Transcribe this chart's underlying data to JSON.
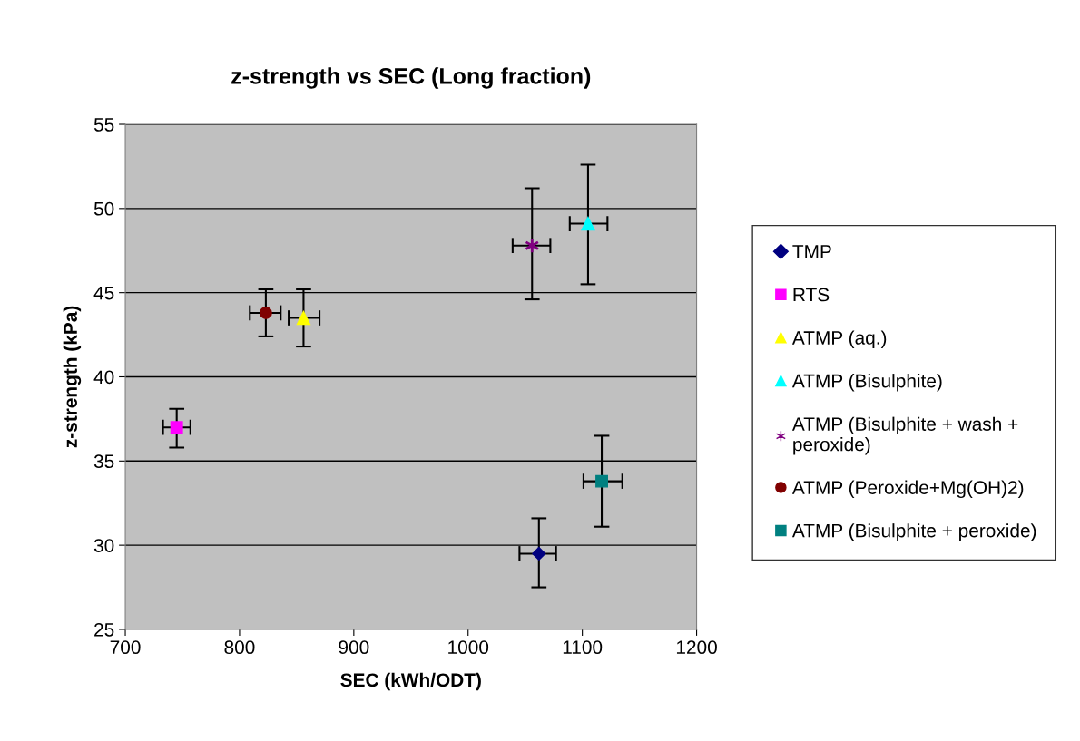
{
  "chart_data": {
    "type": "scatter",
    "title": "z-strength vs SEC (Long fraction)",
    "xlabel": "SEC (kWh/ODT)",
    "ylabel": "z-strength (kPa)",
    "xlim": [
      700,
      1200
    ],
    "xticks": [
      700,
      800,
      900,
      1000,
      1100,
      1200
    ],
    "ylim": [
      25,
      55
    ],
    "yticks": [
      25,
      30,
      35,
      40,
      45,
      50,
      55
    ],
    "grid": "y",
    "legend": "right",
    "series": [
      {
        "name": "TMP",
        "color": "#000080",
        "marker": "diamond",
        "x": [
          1062
        ],
        "values": [
          29.5
        ],
        "errors": [
          [
            27.5,
            31.6
          ]
        ],
        "xerrors": [
          [
            1045,
            1077
          ]
        ]
      },
      {
        "name": "RTS",
        "color": "#ff00ff",
        "marker": "square",
        "x": [
          745
        ],
        "values": [
          37.0
        ],
        "errors": [
          [
            35.8,
            38.1
          ]
        ],
        "xerrors": [
          [
            733,
            757
          ]
        ]
      },
      {
        "name": "ATMP (aq.)",
        "color": "#ffff00",
        "marker": "triangle",
        "x": [
          856
        ],
        "values": [
          43.5
        ],
        "errors": [
          [
            41.8,
            45.2
          ]
        ],
        "xerrors": [
          [
            843,
            870
          ]
        ]
      },
      {
        "name": "ATMP (Bisulphite)",
        "color": "#00ffff",
        "marker": "triangle",
        "x": [
          1105
        ],
        "values": [
          49.1
        ],
        "errors": [
          [
            45.5,
            52.6
          ]
        ],
        "xerrors": [
          [
            1089,
            1122
          ]
        ]
      },
      {
        "name": "ATMP (Bisulphite + wash +\nperoxide)",
        "color": "#800080",
        "marker": "cross",
        "x": [
          1056
        ],
        "values": [
          47.8
        ],
        "errors": [
          [
            44.6,
            51.2
          ]
        ],
        "xerrors": [
          [
            1039,
            1072
          ]
        ]
      },
      {
        "name": "ATMP (Peroxide+Mg(OH)2)",
        "color": "#800000",
        "marker": "circle",
        "x": [
          823
        ],
        "values": [
          43.8
        ],
        "errors": [
          [
            42.4,
            45.2
          ]
        ],
        "xerrors": [
          [
            809,
            836
          ]
        ]
      },
      {
        "name": "ATMP (Bisulphite + peroxide)",
        "color": "#008080",
        "marker": "square",
        "x": [
          1117
        ],
        "values": [
          33.8
        ],
        "errors": [
          [
            31.1,
            36.5
          ]
        ],
        "xerrors": [
          [
            1101,
            1135
          ]
        ]
      }
    ]
  }
}
